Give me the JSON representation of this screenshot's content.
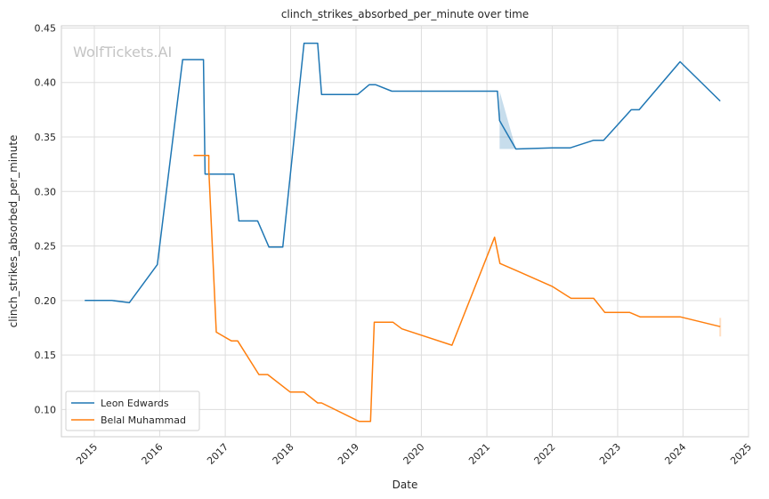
{
  "chart_data": {
    "type": "line",
    "title": "clinch_strikes_absorbed_per_minute over time",
    "xlabel": "Date",
    "ylabel": "clinch_strikes_absorbed_per_minute",
    "watermark": "WolfTickets.AI",
    "xlim": [
      "2014-07-01",
      "2025-01-01"
    ],
    "ylim": [
      0.075,
      0.452
    ],
    "x_ticks": [
      "2015",
      "2016",
      "2017",
      "2018",
      "2019",
      "2020",
      "2021",
      "2022",
      "2023",
      "2024",
      "2025"
    ],
    "y_ticks": [
      "0.10",
      "0.15",
      "0.20",
      "0.25",
      "0.30",
      "0.35",
      "0.40",
      "0.45"
    ],
    "grid": true,
    "legend_position": "lower-left",
    "series": [
      {
        "name": "Leon Edwards",
        "color": "#1f77b4",
        "points": [
          [
            "2014-11-08",
            0.2
          ],
          [
            "2015-04-10",
            0.2
          ],
          [
            "2015-07-15",
            0.198
          ],
          [
            "2015-12-19",
            0.233
          ],
          [
            "2016-05-08",
            0.421
          ],
          [
            "2016-09-01",
            0.421
          ],
          [
            "2016-09-10",
            0.316
          ],
          [
            "2017-02-18",
            0.316
          ],
          [
            "2017-03-18",
            0.273
          ],
          [
            "2017-07-01",
            0.273
          ],
          [
            "2017-09-02",
            0.249
          ],
          [
            "2017-11-18",
            0.249
          ],
          [
            "2018-03-17",
            0.436
          ],
          [
            "2018-06-01",
            0.436
          ],
          [
            "2018-06-23",
            0.389
          ],
          [
            "2019-01-10",
            0.389
          ],
          [
            "2019-03-16",
            0.398
          ],
          [
            "2019-04-20",
            0.398
          ],
          [
            "2019-07-20",
            0.392
          ],
          [
            "2021-03-01",
            0.392
          ],
          [
            "2021-03-13",
            0.365
          ],
          [
            "2021-06-12",
            0.339
          ],
          [
            "2021-12-31",
            0.34
          ],
          [
            "2022-04-10",
            0.34
          ],
          [
            "2022-08-20",
            0.347
          ],
          [
            "2022-10-15",
            0.347
          ],
          [
            "2023-03-18",
            0.375
          ],
          [
            "2023-05-01",
            0.375
          ],
          [
            "2023-12-16",
            0.419
          ],
          [
            "2024-07-27",
            0.383
          ]
        ],
        "band": [
          [
            "2021-03-13",
            0.339,
            0.392
          ],
          [
            "2021-06-12",
            0.339,
            0.339
          ]
        ]
      },
      {
        "name": "Belal Muhammad",
        "color": "#ff7f0e",
        "points": [
          [
            "2016-07-08",
            0.333
          ],
          [
            "2016-10-01",
            0.333
          ],
          [
            "2016-10-01",
            0.32
          ],
          [
            "2016-11-12",
            0.171
          ],
          [
            "2017-02-04",
            0.163
          ],
          [
            "2017-03-11",
            0.163
          ],
          [
            "2017-07-08",
            0.132
          ],
          [
            "2017-08-26",
            0.132
          ],
          [
            "2017-12-30",
            0.116
          ],
          [
            "2018-03-17",
            0.116
          ],
          [
            "2018-06-01",
            0.106
          ],
          [
            "2018-06-23",
            0.106
          ],
          [
            "2019-01-19",
            0.089
          ],
          [
            "2019-03-23",
            0.089
          ],
          [
            "2019-04-13",
            0.18
          ],
          [
            "2019-07-27",
            0.18
          ],
          [
            "2019-09-14",
            0.174
          ],
          [
            "2020-06-20",
            0.159
          ],
          [
            "2021-02-13",
            0.258
          ],
          [
            "2021-03-15",
            0.234
          ],
          [
            "2021-06-20",
            0.227
          ],
          [
            "2021-12-31",
            0.213
          ],
          [
            "2022-04-16",
            0.202
          ],
          [
            "2022-08-20",
            0.202
          ],
          [
            "2022-10-22",
            0.189
          ],
          [
            "2023-03-10",
            0.189
          ],
          [
            "2023-05-06",
            0.185
          ],
          [
            "2023-12-16",
            0.185
          ],
          [
            "2024-07-27",
            0.176
          ]
        ],
        "band": [
          [
            "2024-07-27",
            0.167,
            0.184
          ]
        ]
      }
    ]
  }
}
